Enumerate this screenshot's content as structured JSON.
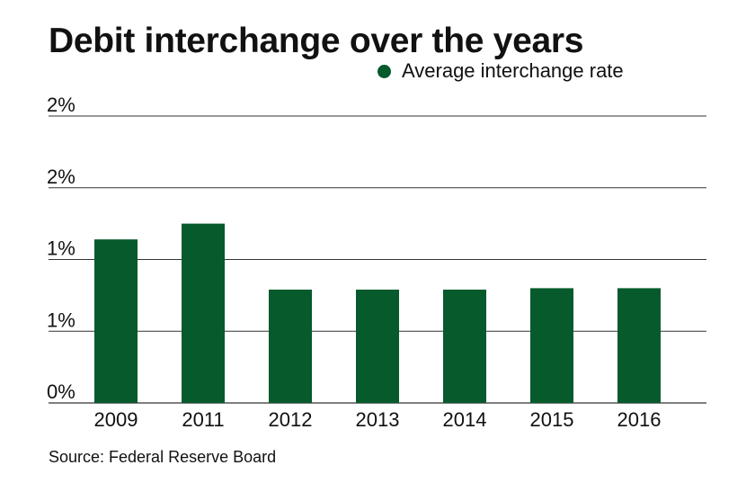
{
  "title": "Debit interchange over the years",
  "legend": {
    "label": "Average interchange rate",
    "color": "#065a2b"
  },
  "source": "Source: Federal Reserve Board",
  "colors": {
    "bar": "#065a2b",
    "grid": "#333333",
    "text": "#111111"
  },
  "chart_data": {
    "type": "bar",
    "title": "Debit interchange over the years",
    "categories": [
      "2009",
      "2011",
      "2012",
      "2013",
      "2014",
      "2015",
      "2016"
    ],
    "series": [
      {
        "name": "Average interchange rate",
        "values": [
          1.14,
          1.25,
          0.79,
          0.79,
          0.79,
          0.8,
          0.8
        ]
      }
    ],
    "y_ticks": [
      0,
      0.5,
      1.0,
      1.5,
      2.0
    ],
    "y_tick_labels": [
      "0%",
      "1%",
      "1%",
      "2%",
      "2%"
    ],
    "ylim": [
      0,
      2.0
    ],
    "xlabel": "",
    "ylabel": "",
    "grid": true,
    "legend_position": "top-right"
  }
}
